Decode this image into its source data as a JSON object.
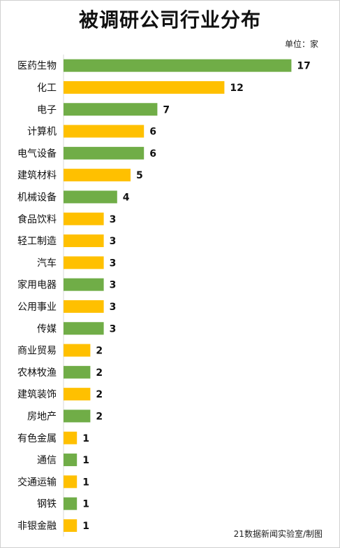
{
  "title": "被调研公司行业分布",
  "unit_label": "单位：家",
  "credit": "21数据新闻实验室/制图",
  "colors": {
    "green": "#70ad47",
    "yellow": "#ffc000",
    "axis": "#d9d9d9"
  },
  "chart_data": {
    "type": "bar",
    "orientation": "horizontal",
    "title": "被调研公司行业分布",
    "unit": "单位：家",
    "categories": [
      "医药生物",
      "化工",
      "电子",
      "计算机",
      "电气设备",
      "建筑材料",
      "机械设备",
      "食品饮料",
      "轻工制造",
      "汽车",
      "家用电器",
      "公用事业",
      "传媒",
      "商业贸易",
      "农林牧渔",
      "建筑装饰",
      "房地产",
      "有色金属",
      "通信",
      "交通运输",
      "钢铁",
      "非银金融"
    ],
    "values": [
      17,
      12,
      7,
      6,
      6,
      5,
      4,
      3,
      3,
      3,
      3,
      3,
      3,
      2,
      2,
      2,
      2,
      1,
      1,
      1,
      1,
      1
    ],
    "bar_colors": [
      "#70ad47",
      "#ffc000",
      "#70ad47",
      "#ffc000",
      "#70ad47",
      "#ffc000",
      "#70ad47",
      "#ffc000",
      "#ffc000",
      "#ffc000",
      "#70ad47",
      "#ffc000",
      "#70ad47",
      "#ffc000",
      "#70ad47",
      "#ffc000",
      "#70ad47",
      "#ffc000",
      "#70ad47",
      "#ffc000",
      "#70ad47",
      "#ffc000"
    ],
    "xlim": [
      0,
      17
    ],
    "data_labels": true,
    "grid": false,
    "legend": "none"
  }
}
